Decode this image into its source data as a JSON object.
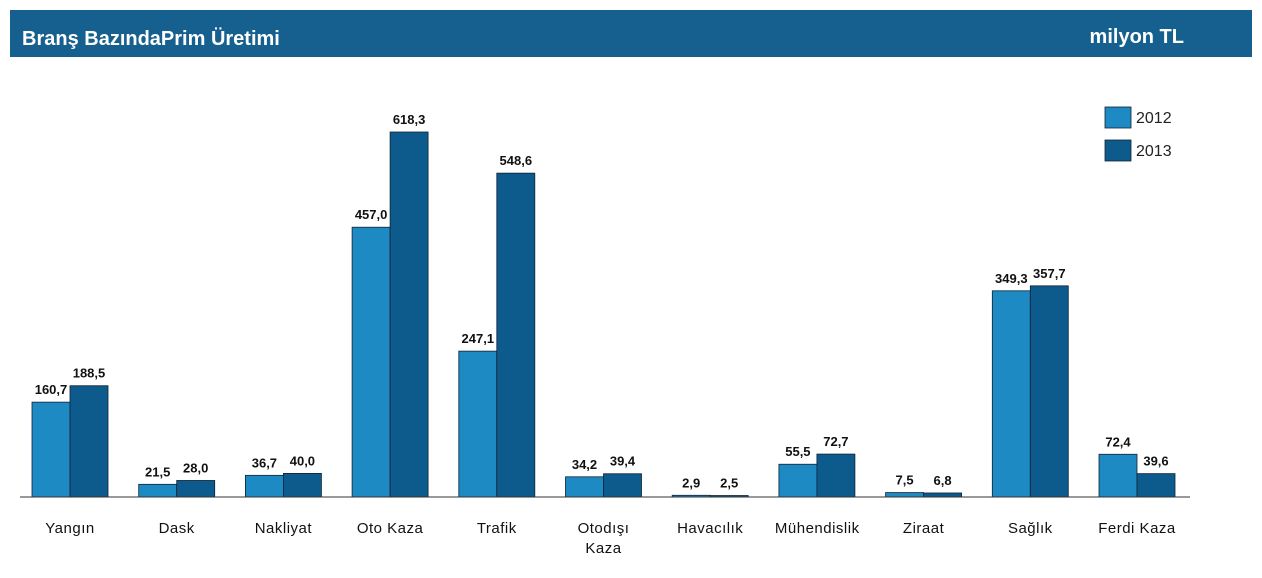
{
  "chart_data": {
    "type": "bar",
    "title": "Branş BazındaPrim Üretimi",
    "subtitle": "milyon TL",
    "categories": [
      "Yangın",
      "Dask",
      "Nakliyat",
      "Oto Kaza",
      "Trafik",
      "Otodışı Kaza",
      "Havacılık",
      "Mühendislik",
      "Ziraat",
      "Sağlık",
      "Ferdi Kaza"
    ],
    "series": [
      {
        "name": "2012",
        "color": "#1d8ac4",
        "values": [
          160.7,
          21.5,
          36.7,
          457.0,
          247.1,
          34.2,
          2.9,
          55.5,
          7.5,
          349.3,
          72.4
        ],
        "value_labels": [
          "160,7",
          "21,5",
          "36,7",
          "457,0",
          "247,1",
          "34,2",
          "2,9",
          "55,5",
          "7,5",
          "349,3",
          "72,4"
        ]
      },
      {
        "name": "2013",
        "color": "#0d5a8c",
        "values": [
          188.5,
          28.0,
          40.0,
          618.3,
          548.6,
          39.4,
          2.5,
          72.7,
          6.8,
          357.7,
          39.6
        ],
        "value_labels": [
          "188,5",
          "28,0",
          "40,0",
          "618,3",
          "548,6",
          "39,4",
          "2,5",
          "72,7",
          "6,8",
          "357,7",
          "39,6"
        ]
      }
    ],
    "legend": "top-right"
  }
}
